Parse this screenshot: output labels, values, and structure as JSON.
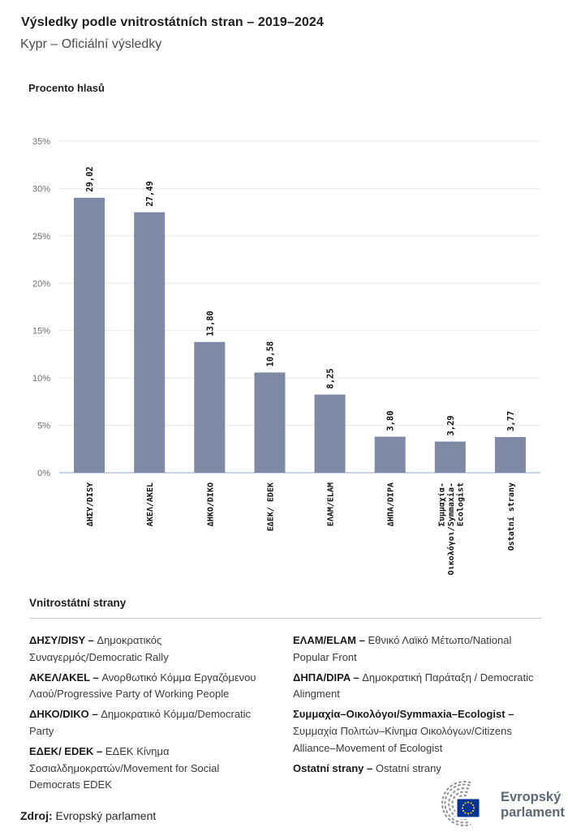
{
  "header": {
    "title": "Výsledky podle vnitrostátních stran – 2019–2024",
    "subtitle": "Kypr – Oficiální výsledky"
  },
  "chart_data": {
    "type": "bar",
    "title": "",
    "ylabel": "Procento hlasů",
    "xlabel": "",
    "ylim": [
      0,
      35
    ],
    "grid": "horizontal",
    "legend_position": "none",
    "categories": [
      "ΔΗΣΥ/DISY",
      "ΑΚΕΛ/AKEL",
      "ΔΗΚΟ/DIKO",
      "ΕΔΕΚ/ EDEK",
      "ΕΛΑΜ/ELAM",
      "ΔΗΠΑ/DIPA",
      "Συμμαχία-\nΟικολόγοι/Symmaxia-\nEcologist",
      "Ostatní strany"
    ],
    "values": [
      29.02,
      27.49,
      13.8,
      10.58,
      8.25,
      3.8,
      3.29,
      3.77
    ],
    "value_labels": [
      "29,02",
      "27,49",
      "13,80",
      "10,58",
      "8,25",
      "3,80",
      "3,29",
      "3,77"
    ],
    "ytick_values": [
      0,
      5,
      10,
      15,
      20,
      25,
      30,
      35
    ],
    "ytick_labels": [
      "0%",
      "5%",
      "10%",
      "15%",
      "20%",
      "25%",
      "30%",
      "35%"
    ],
    "colors": {
      "bar": "#7E89A5",
      "axis_line": "#C9D2E2",
      "gridline": "#E7E7E7",
      "tick_text": "#6E6E6E",
      "value_text": "#111111"
    }
  },
  "legend": {
    "title": "Vnitrostátní strany",
    "columns": [
      {
        "items": [
          {
            "term": "ΔΗΣΥ/DISY –",
            "desc": "Δημοκρατικός Συναγερμός/Democratic Rally"
          },
          {
            "term": "ΑΚΕΛ/AKEL  –",
            "desc": "Ανορθωτικό Κόμμα Εργαζόμενου Λαού/Progressive Party of Working People"
          },
          {
            "term": "ΔΗΚΟ/DIKO –",
            "desc": "Δημοκρατικό Κόμμα/Democratic Party"
          },
          {
            "term": "ΕΔΕΚ/ EDEK –",
            "desc": "ΕΔΕΚ Κίνημα Σοσιαλδημοκρατών/Movement for Social Democrats EDEK"
          }
        ]
      },
      {
        "items": [
          {
            "term": "ΕΛΑΜ/ELAM –",
            "desc": "Εθνικό Λαϊκό Μέτωπο/National Popular Front"
          },
          {
            "term": "ΔΗΠΑ/DIPA –",
            "desc": "Δημοκρατική Παράταξη / Democratic Alingment"
          },
          {
            "term": "Συμμαχία–Οικολόγοι/Symmaxia–Ecologist –",
            "desc": "Συμμαχία Πολιτών–Κίνημα Οικολόγων/Citizens Alliance–Movement of Ecologist"
          },
          {
            "term": "Ostatní strany –",
            "desc": "Ostatní strany"
          }
        ]
      }
    ]
  },
  "footer": {
    "source_label": "Zdroj:",
    "source_value": "Evropský parlament",
    "logo": {
      "line1": "Evropský",
      "line2": "parlament"
    }
  },
  "colors": {
    "eu_blue": "#003399",
    "star_yellow": "#FFCC00",
    "logo_gray": "#8D959C",
    "logo_text": "#5D6977"
  }
}
